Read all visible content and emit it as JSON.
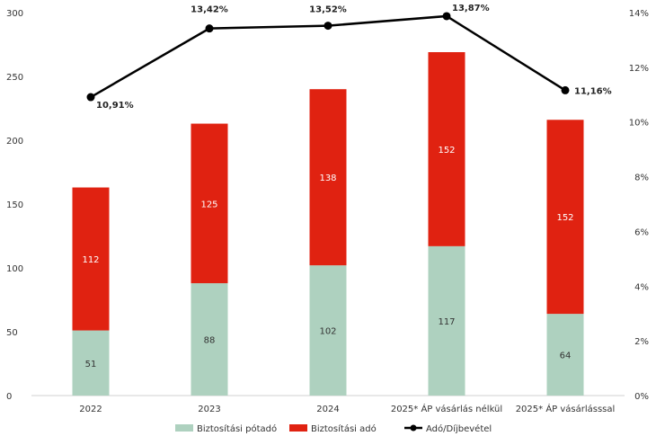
{
  "chart_data": {
    "type": "bar",
    "stacked": true,
    "categories": [
      "2022",
      "2023",
      "2024",
      "2025* ÁP vásárlás nélkül",
      "2025* ÁP vásárlásssal"
    ],
    "series": [
      {
        "name": "Biztosítási pótadó",
        "type": "bar",
        "axis": "left",
        "color": "#aed1bf",
        "label_color": "#333333",
        "values": [
          51,
          88,
          102,
          117,
          64
        ],
        "labels": [
          "51",
          "88",
          "102",
          "117",
          "64"
        ]
      },
      {
        "name": "Biztosítási adó",
        "type": "bar",
        "axis": "left",
        "color": "#e02211",
        "label_color": "#ffffff",
        "values": [
          112,
          125,
          138,
          152,
          152
        ],
        "labels": [
          "112",
          "125",
          "138",
          "152",
          "152"
        ]
      },
      {
        "name": "Adó/Díjbevétel",
        "type": "line",
        "axis": "right",
        "color": "#000000",
        "values": [
          10.91,
          13.42,
          13.52,
          13.87,
          11.16
        ],
        "labels": [
          "10,91%",
          "13,42%",
          "13,52%",
          "13,87%",
          "11,16%"
        ]
      }
    ],
    "y_left": {
      "min": 0,
      "max": 300,
      "ticks": [
        "0",
        "50",
        "100",
        "150",
        "200",
        "250",
        "300"
      ]
    },
    "y_right": {
      "min": 0,
      "max": 14,
      "ticks": [
        "0%",
        "2%",
        "4%",
        "6%",
        "8%",
        "10%",
        "12%",
        "14%"
      ]
    },
    "grid": false,
    "legend_position": "bottom"
  }
}
